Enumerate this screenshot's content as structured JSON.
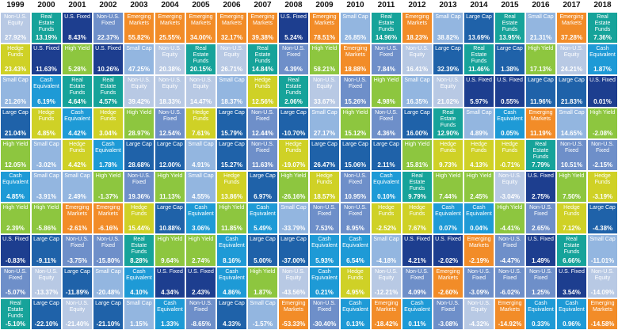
{
  "colors": {
    "Non-U.S. Equity": "#b8c9e4",
    "Real Estate Funds": "#16a39a",
    "U.S. Fixed": "#1d3e8f",
    "Emerging Markets": "#f28c28",
    "Small Cap": "#93b6e0",
    "Large Cap": "#1f62a9",
    "High Yield": "#8dc63f",
    "Hedge Funds": "#cfd126",
    "Cash Equivalent": "#1e9ad6",
    "Non-U.S. Fixed": "#6e8fc9"
  },
  "chart_data": {
    "type": "table",
    "years": [
      "1999",
      "2000",
      "2001",
      "2002",
      "2003",
      "2004",
      "2005",
      "2006",
      "2007",
      "2008",
      "2009",
      "2010",
      "2011",
      "2012",
      "2013",
      "2014",
      "2015",
      "2016",
      "2017",
      "2018"
    ],
    "columns": [
      [
        [
          "Non-U.S. Equity",
          "27.92%"
        ],
        [
          "Hedge Funds",
          "23.43%"
        ],
        [
          "Small Cap",
          "21.26%"
        ],
        [
          "Large Cap",
          "21.04%"
        ],
        [
          "High Yield",
          "12.05%"
        ],
        [
          "Cash Equivalent",
          "4.85%"
        ],
        [
          "High Yield",
          "2.39%"
        ],
        [
          "U.S. Fixed",
          "-0.83%"
        ],
        [
          "Non-U.S. Fixed",
          "-5.07%"
        ],
        [
          "Real Estate Funds",
          "-5.10%"
        ]
      ],
      [
        [
          "Real Estate Funds",
          "13.19%"
        ],
        [
          "U.S. Fixed",
          "11.63%"
        ],
        [
          "Cash Equivalent",
          "6.19%"
        ],
        [
          "Hedge Funds",
          "4.85%"
        ],
        [
          "Small Cap",
          "-3.02%"
        ],
        [
          "Small Cap",
          "-3.91%"
        ],
        [
          "High Yield",
          "-5.86%"
        ],
        [
          "Large Cap",
          "-9.11%"
        ],
        [
          "Non-U.S. Equity",
          "-13.37%"
        ],
        [
          "Large Cap",
          "-22.10%"
        ]
      ],
      [
        [
          "U.S. Fixed",
          "8.43%"
        ],
        [
          "High Yield",
          "5.28%"
        ],
        [
          "Real Estate Funds",
          "4.64%"
        ],
        [
          "Cash Equivalent",
          "4.42%"
        ],
        [
          "Hedge Funds",
          "4.42%"
        ],
        [
          "Small Cap",
          "2.49%"
        ],
        [
          "Emerging Markets",
          "-2.61%"
        ],
        [
          "Non-U.S. Fixed",
          "-3.75%"
        ],
        [
          "Large Cap",
          "-11.89%"
        ],
        [
          "Non-U.S. Equity",
          "-21.40%"
        ]
      ],
      [
        [
          "Non-U.S. Fixed",
          "22.37%"
        ],
        [
          "U.S. Fixed",
          "10.26%"
        ],
        [
          "Real Estate Funds",
          "4.57%"
        ],
        [
          "Hedge Funds",
          "3.04%"
        ],
        [
          "Cash Equivalent",
          "1.78%"
        ],
        [
          "High Yield",
          "-1.37%"
        ],
        [
          "Emerging Markets",
          "-6.16%"
        ],
        [
          "Non-U.S. Fixed",
          "-15.80%"
        ],
        [
          "Small Cap",
          "-20.48%"
        ],
        [
          "Large Cap",
          "-21.10%"
        ]
      ],
      [
        [
          "Emerging Markets",
          "55.82%"
        ],
        [
          "Small Cap",
          "47.25%"
        ],
        [
          "Non-U.S. Equity",
          "39.42%"
        ],
        [
          "High Yield",
          "28.97%"
        ],
        [
          "Large Cap",
          "28.68%"
        ],
        [
          "Non-U.S. Fixed",
          "19.36%"
        ],
        [
          "Hedge Funds",
          "15.44%"
        ],
        [
          "Real Estate Funds",
          "8.28%"
        ],
        [
          "Cash Equivalent",
          "4.10%"
        ],
        [
          "Small Cap",
          "1.15%"
        ]
      ],
      [
        [
          "Emerging Markets",
          "25.55%"
        ],
        [
          "Non-U.S. Equity",
          "20.38%"
        ],
        [
          "Non-U.S. Equity",
          "18.33%"
        ],
        [
          "Non-U.S. Fixed",
          "12.54%"
        ],
        [
          "Large Cap",
          "12.00%"
        ],
        [
          "High Yield",
          "11.13%"
        ],
        [
          "Large Cap",
          "10.88%"
        ],
        [
          "High Yield",
          "9.64%"
        ],
        [
          "U.S. Fixed",
          "4.34%"
        ],
        [
          "Cash Equivalent",
          "1.33%"
        ]
      ],
      [
        [
          "Emerging Markets",
          "34.00%"
        ],
        [
          "Real Estate Funds",
          "20.15%"
        ],
        [
          "Non-U.S. Equity",
          "14.47%"
        ],
        [
          "Hedge Funds",
          "7.61%"
        ],
        [
          "Small Cap",
          "4.91%"
        ],
        [
          "Small Cap",
          "4.55%"
        ],
        [
          "Cash Equivalent",
          "3.06%"
        ],
        [
          "High Yield",
          "2.74%"
        ],
        [
          "U.S. Fixed",
          "2.43%"
        ],
        [
          "Non-U.S. Fixed",
          "-8.65%"
        ]
      ],
      [
        [
          "Emerging Markets",
          "32.17%"
        ],
        [
          "Non-U.S. Equity",
          "26.71%"
        ],
        [
          "Small Cap",
          "18.37%"
        ],
        [
          "Large Cap",
          "15.79%"
        ],
        [
          "Large Cap",
          "15.27%"
        ],
        [
          "Hedge Funds",
          "13.86%"
        ],
        [
          "High Yield",
          "11.85%"
        ],
        [
          "Cash Equivalent",
          "8.16%"
        ],
        [
          "Cash Equivalent",
          "4.86%"
        ],
        [
          "Large Cap",
          "4.33%"
        ]
      ],
      [
        [
          "Emerging Markets",
          "39.38%"
        ],
        [
          "Real Estate Funds",
          "14.84%"
        ],
        [
          "Hedge Funds",
          "12.56%"
        ],
        [
          "Non-U.S. Fixed",
          "12.44%"
        ],
        [
          "Non-U.S. Fixed",
          "11.63%"
        ],
        [
          "Large Cap",
          "6.97%"
        ],
        [
          "Cash Equivalent",
          "5.49%"
        ],
        [
          "Large Cap",
          "5.00%"
        ],
        [
          "High Yield",
          "1.87%"
        ],
        [
          "Small Cap",
          "-1.57%"
        ]
      ],
      [
        [
          "U.S. Fixed",
          "5.24%"
        ],
        [
          "Non-U.S. Fixed",
          "4.39%"
        ],
        [
          "Real Estate Funds",
          "2.06%"
        ],
        [
          "Large Cap",
          "-10.70%"
        ],
        [
          "Hedge Funds",
          "-19.07%"
        ],
        [
          "High Yield",
          "-26.16%"
        ],
        [
          "Small Cap",
          "-33.79%"
        ],
        [
          "Large Cap",
          "-37.00%"
        ],
        [
          "Non-U.S. Equity",
          "-43.56%"
        ],
        [
          "Emerging Markets",
          "-53.33%"
        ]
      ],
      [
        [
          "Emerging Markets",
          "78.51%"
        ],
        [
          "High Yield",
          "58.21%"
        ],
        [
          "Non-U.S. Equity",
          "33.67%"
        ],
        [
          "Small Cap",
          "27.17%"
        ],
        [
          "Large Cap",
          "26.47%"
        ],
        [
          "Hedge Funds",
          "18.57%"
        ],
        [
          "Non-U.S. Fixed",
          "7.53%"
        ],
        [
          "Cash Equivalent",
          "5.93%"
        ],
        [
          "Cash Equivalent",
          "0.21%"
        ],
        [
          "Non-U.S. Fixed",
          "-30.40%"
        ]
      ],
      [
        [
          "Small Cap",
          "26.85%"
        ],
        [
          "Emerging Markets",
          "18.88%"
        ],
        [
          "Non-U.S. Fixed",
          "15.26%"
        ],
        [
          "High Yield",
          "15.12%"
        ],
        [
          "Large Cap",
          "15.06%"
        ],
        [
          "Non-U.S. Fixed",
          "10.95%"
        ],
        [
          "Non-U.S. Fixed",
          "8.95%"
        ],
        [
          "Cash Equivalent",
          "6.54%"
        ],
        [
          "Hedge Funds",
          "4.95%"
        ],
        [
          "Cash Equivalent",
          "0.13%"
        ]
      ],
      [
        [
          "Real Estate Funds",
          "14.96%"
        ],
        [
          "Non-U.S. Fixed",
          "7.84%"
        ],
        [
          "High Yield",
          "4.98%"
        ],
        [
          "Non-U.S. Fixed",
          "4.36%"
        ],
        [
          "Large Cap",
          "2.11%"
        ],
        [
          "Cash Equivalent",
          "0.10%"
        ],
        [
          "Hedge Funds",
          "-2.52%"
        ],
        [
          "Small Cap",
          "-4.18%"
        ],
        [
          "Non-U.S. Equity",
          "-12.21%"
        ],
        [
          "Emerging Markets",
          "-18.42%"
        ]
      ],
      [
        [
          "Emerging Markets",
          "18.23%"
        ],
        [
          "Non-U.S. Equity",
          "16.41%"
        ],
        [
          "Small Cap",
          "16.35%"
        ],
        [
          "Large Cap",
          "16.00%"
        ],
        [
          "High Yield",
          "15.81%"
        ],
        [
          "Real Estate Funds",
          "9.79%"
        ],
        [
          "Hedge Funds",
          "7.67%"
        ],
        [
          "U.S. Fixed",
          "4.21%"
        ],
        [
          "Non-U.S. Fixed",
          "4.09%"
        ],
        [
          "Cash Equivalent",
          "0.11%"
        ]
      ],
      [
        [
          "Small Cap",
          "38.82%"
        ],
        [
          "Large Cap",
          "32.39%"
        ],
        [
          "Non-U.S. Equity",
          "21.02%"
        ],
        [
          "Real Estate Funds",
          "12.90%"
        ],
        [
          "Hedge Funds",
          "9.73%"
        ],
        [
          "High Yield",
          "7.44%"
        ],
        [
          "Cash Equivalent",
          "0.07%"
        ],
        [
          "U.S. Fixed",
          "-2.02%"
        ],
        [
          "Emerging Markets",
          "-2.60%"
        ],
        [
          "Non-U.S. Fixed",
          "-3.08%"
        ]
      ],
      [
        [
          "Large Cap",
          "13.69%"
        ],
        [
          "Real Estate Funds",
          "11.46%"
        ],
        [
          "U.S. Fixed",
          "5.97%"
        ],
        [
          "Small Cap",
          "4.89%"
        ],
        [
          "Hedge Funds",
          "4.13%"
        ],
        [
          "High Yield",
          "2.45%"
        ],
        [
          "Cash Equivalent",
          "0.04%"
        ],
        [
          "Emerging Markets",
          "-2.19%"
        ],
        [
          "Non-U.S. Fixed",
          "-3.09%"
        ],
        [
          "Non-U.S. Equity",
          "-4.32%"
        ]
      ],
      [
        [
          "Real Estate Funds",
          "13.95%"
        ],
        [
          "Large Cap",
          "1.38%"
        ],
        [
          "U.S. Fixed",
          "0.55%"
        ],
        [
          "Cash Equivalent",
          "0.05%"
        ],
        [
          "Hedge Funds",
          "-0.71%"
        ],
        [
          "Non-U.S. Equity",
          "-3.04%"
        ],
        [
          "High Yield",
          "-4.41%"
        ],
        [
          "Non-U.S. Fixed",
          "-4.47%"
        ],
        [
          "Non-U.S. Fixed",
          "-6.02%"
        ],
        [
          "Emerging Markets",
          "-14.92%"
        ]
      ],
      [
        [
          "Small Cap",
          "21.31%"
        ],
        [
          "High Yield",
          "17.13%"
        ],
        [
          "Large Cap",
          "11.96%"
        ],
        [
          "Emerging Markets",
          "11.19%"
        ],
        [
          "Real Estate Funds",
          "7.79%"
        ],
        [
          "U.S. Fixed",
          "2.75%"
        ],
        [
          "Non-U.S. Fixed",
          "2.65%"
        ],
        [
          "U.S. Fixed",
          "1.49%"
        ],
        [
          "Non-U.S. Fixed",
          "1.25%"
        ],
        [
          "Cash Equivalent",
          "0.33%"
        ]
      ],
      [
        [
          "Emerging Markets",
          "37.28%"
        ],
        [
          "Non-U.S. Equity",
          "24.21%"
        ],
        [
          "Large Cap",
          "21.83%"
        ],
        [
          "Small Cap",
          "14.65%"
        ],
        [
          "Non-U.S. Fixed",
          "10.51%"
        ],
        [
          "High Yield",
          "7.50%"
        ],
        [
          "Hedge Funds",
          "7.12%"
        ],
        [
          "Real Estate Funds",
          "6.66%"
        ],
        [
          "U.S. Fixed",
          "3.54%"
        ],
        [
          "Cash Equivalent",
          "0.96%"
        ]
      ],
      [
        [
          "Real Estate Funds",
          "7.36%"
        ],
        [
          "Cash Equivalent",
          "1.87%"
        ],
        [
          "U.S. Fixed",
          "0.01%"
        ],
        [
          "High Yield",
          "-2.08%"
        ],
        [
          "Non-U.S. Fixed",
          "-2.15%"
        ],
        [
          "Hedge Funds",
          "-3.19%"
        ],
        [
          "Large Cap",
          "-4.38%"
        ],
        [
          "Small Cap",
          "-11.01%"
        ],
        [
          "Non-U.S. Equity",
          "-14.09%"
        ],
        [
          "Emerging Markets",
          "-14.58%"
        ]
      ]
    ]
  }
}
